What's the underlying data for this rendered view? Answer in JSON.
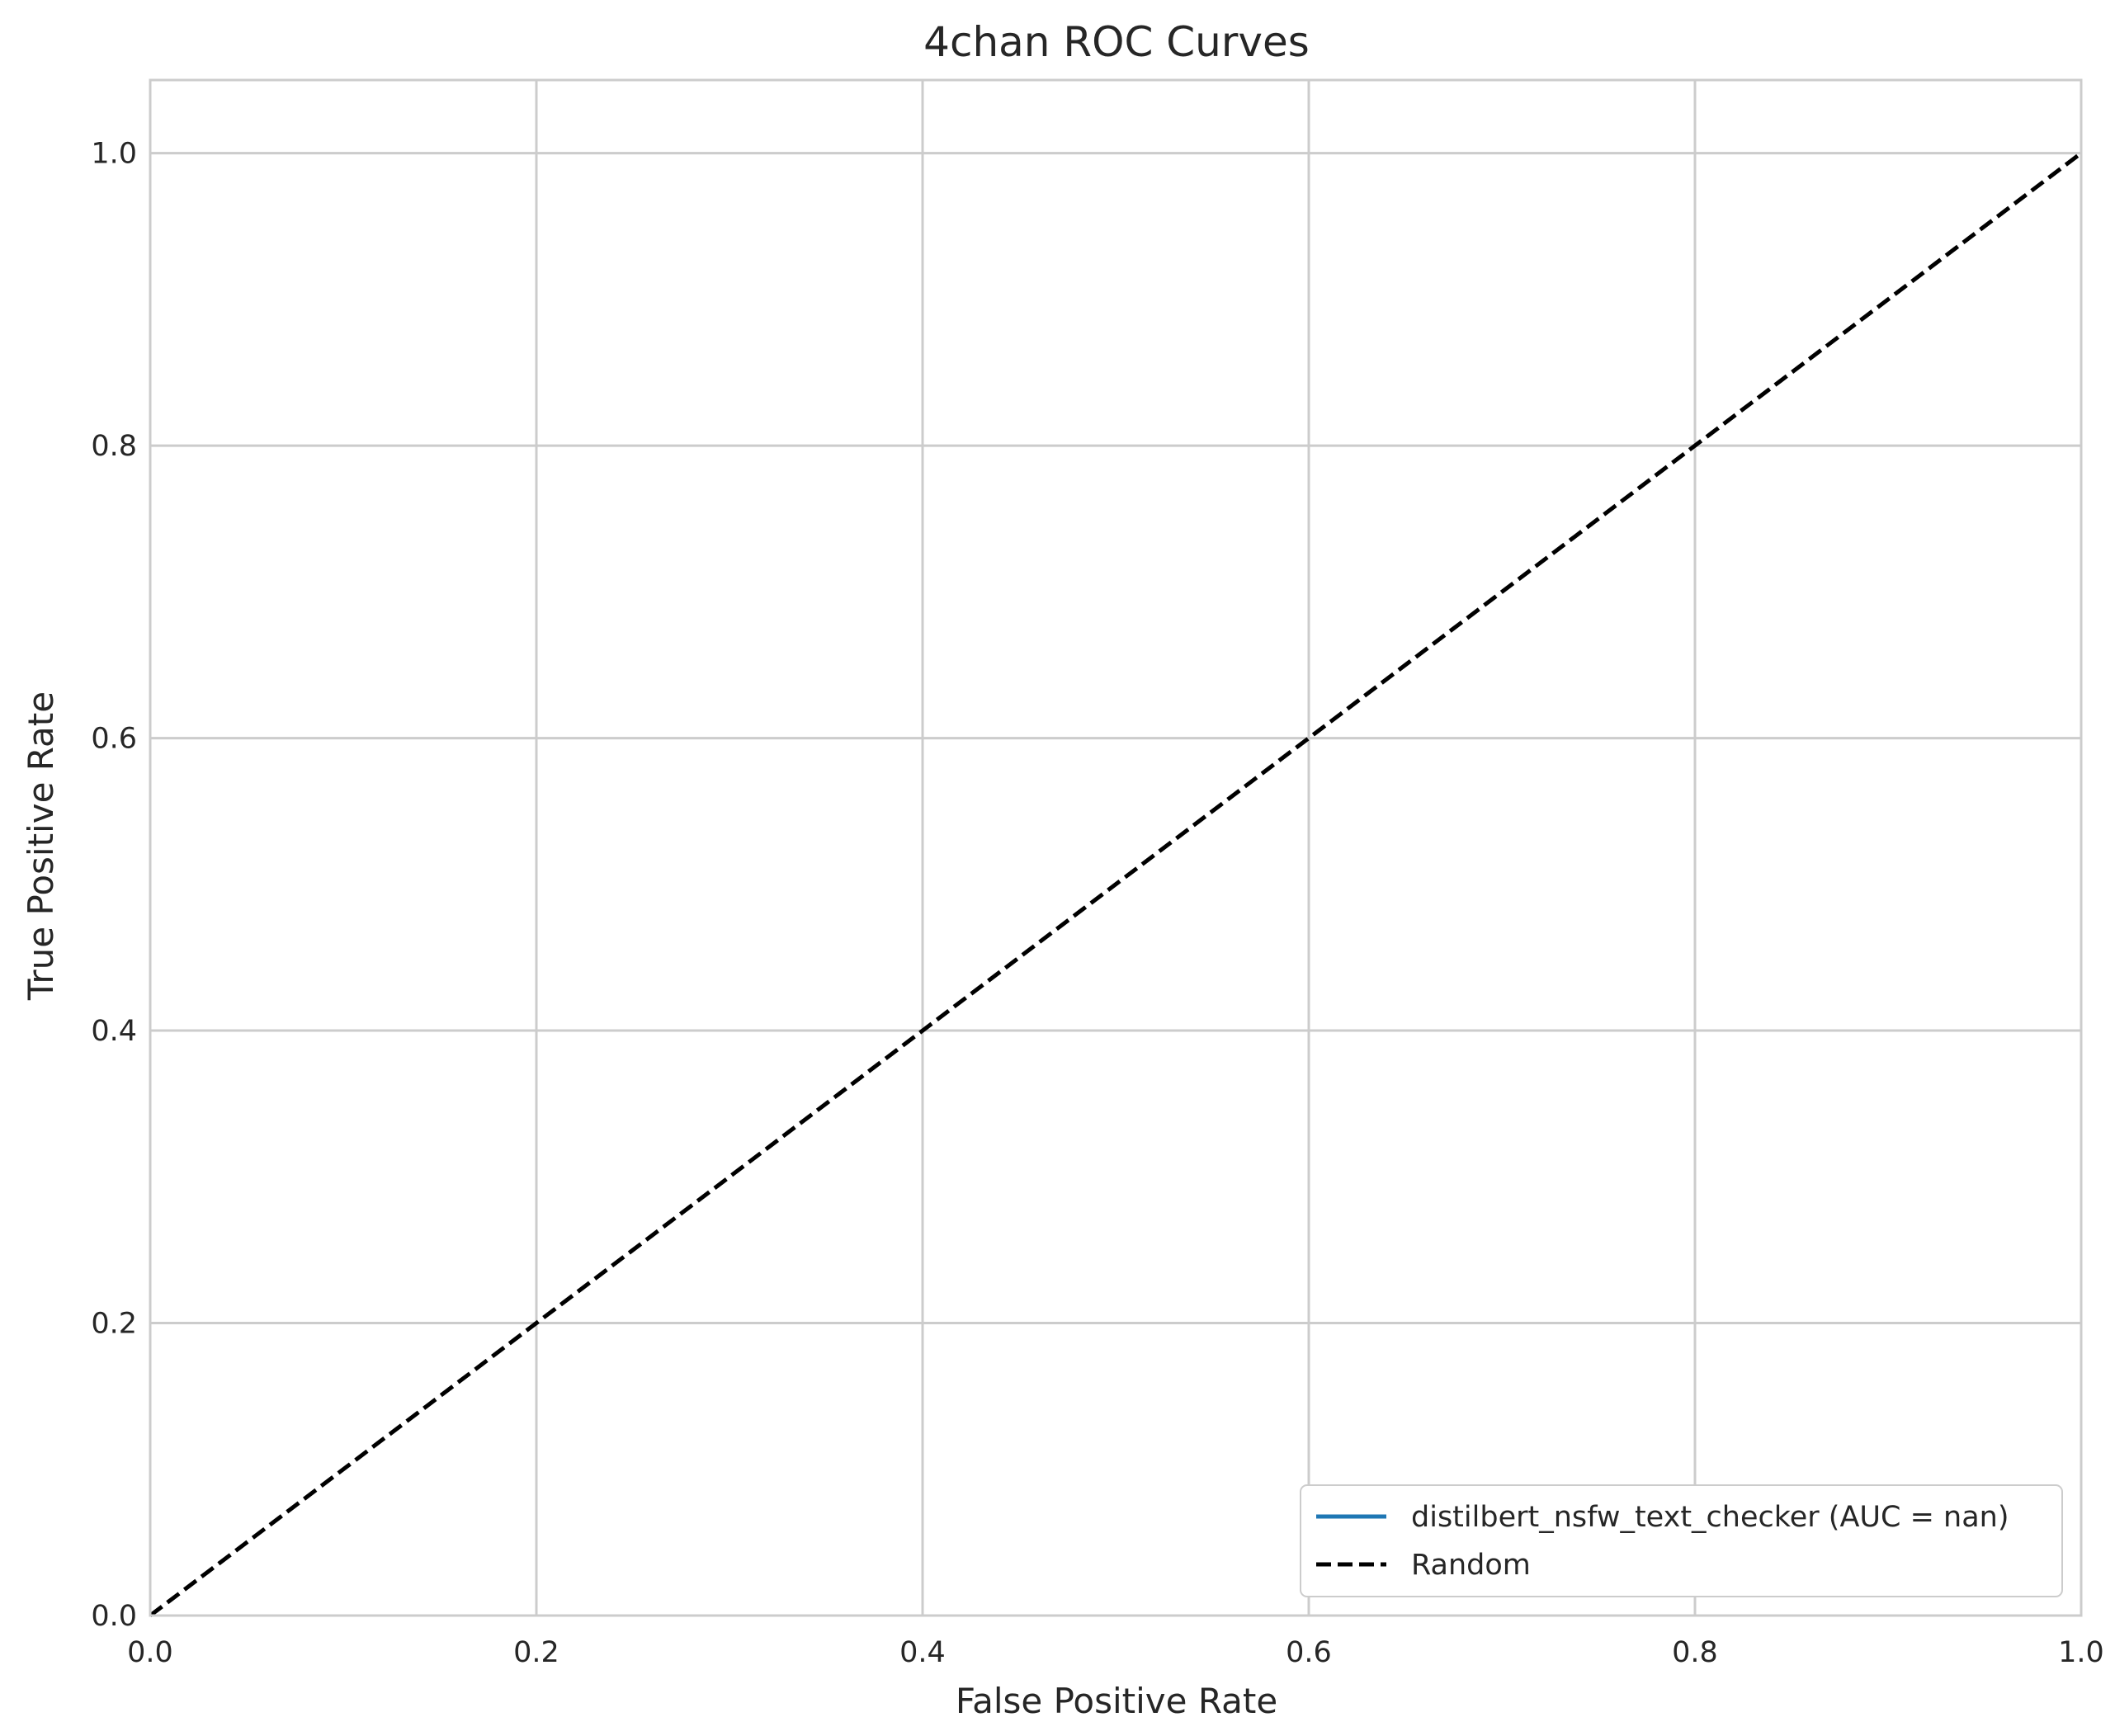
{
  "chart_data": {
    "type": "line",
    "title": "4chan ROC Curves",
    "xlabel": "False Positive Rate",
    "ylabel": "True Positive Rate",
    "xlim": [
      0.0,
      1.0
    ],
    "ylim": [
      0.0,
      1.05
    ],
    "xticks": [
      "0.0",
      "0.2",
      "0.4",
      "0.6",
      "0.8",
      "1.0"
    ],
    "yticks": [
      "0.0",
      "0.2",
      "0.4",
      "0.6",
      "0.8",
      "1.0"
    ],
    "grid": true,
    "legend_position": "lower-right",
    "series": [
      {
        "name": "distilbert_nsfw_text_checker (AUC = nan)",
        "x": [],
        "y": [],
        "color": "#1f77b4",
        "style": "solid"
      },
      {
        "name": "Random",
        "x": [
          0.0,
          1.0
        ],
        "y": [
          0.0,
          1.0
        ],
        "color": "#000000",
        "style": "dashed"
      }
    ]
  }
}
